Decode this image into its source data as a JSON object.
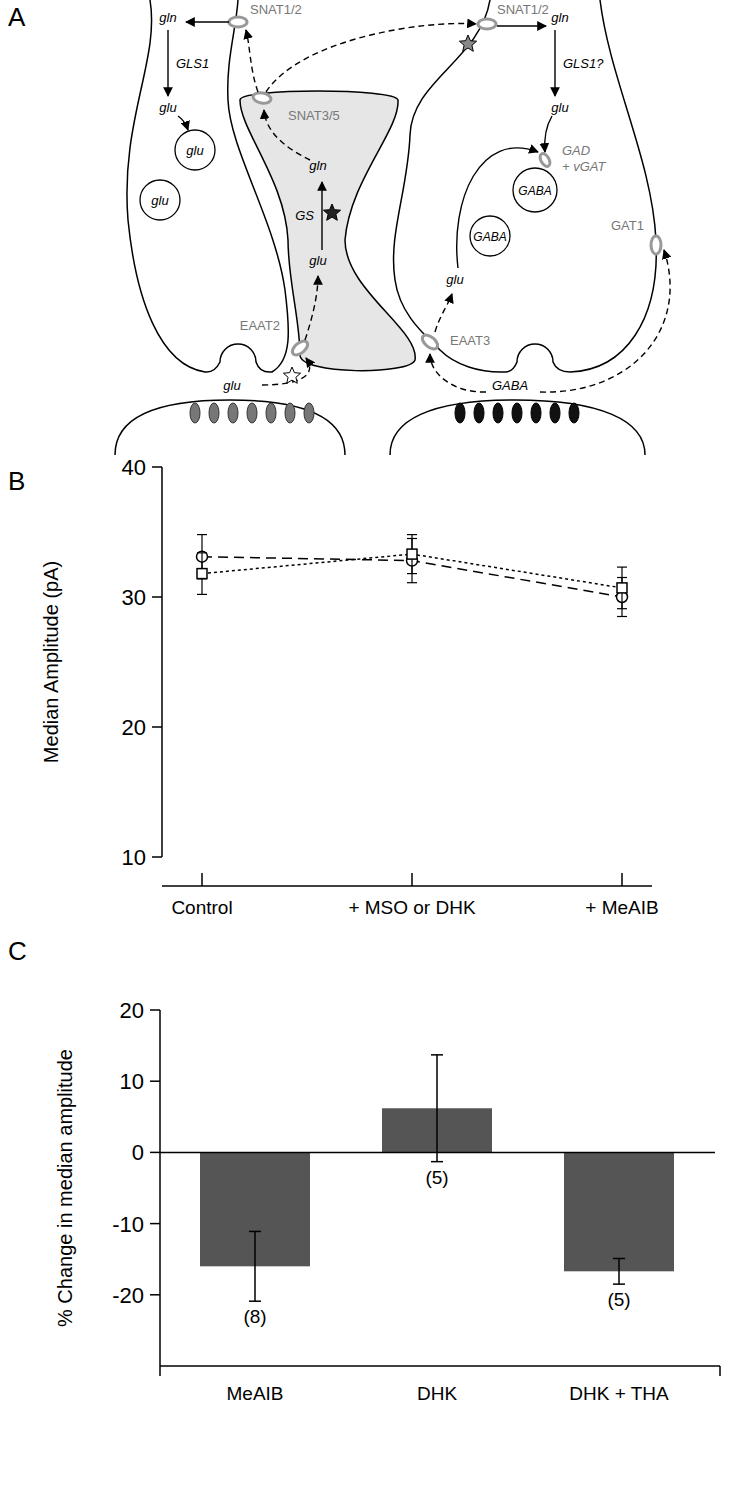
{
  "diagram": {
    "panel_label": "A",
    "labels": [
      "gln",
      "SNAT1/2",
      "GLS1",
      "glu",
      "glu",
      "glu",
      "glu",
      "SNAT3/5",
      "gln",
      "GS",
      "glu",
      "EAAT2",
      "SNAT1/2",
      "gln",
      "GLS1?",
      "glu",
      "GAD",
      "+ vGAT",
      "GABA",
      "GABA",
      "GAT1",
      "glu",
      "EAAT3",
      "GABA"
    ]
  },
  "chart_data": [
    {
      "type": "line",
      "panel_label": "B",
      "ylabel": "Median Amplitude (pA)",
      "categories": [
        "Control",
        "+ MSO or DHK",
        "+ MeAIB"
      ],
      "ylim": [
        10,
        40
      ],
      "yticks": [
        10,
        20,
        30,
        40
      ],
      "grid": false,
      "series": [
        {
          "marker": "circle",
          "line_style": "dashed",
          "color": "#000000",
          "values": [
            33.1,
            32.8,
            30.0
          ],
          "errors": [
            1.7,
            1.7,
            1.5
          ]
        },
        {
          "marker": "square",
          "line_style": "dotted",
          "color": "#000000",
          "values": [
            31.8,
            33.3,
            30.7
          ],
          "errors": [
            1.6,
            1.5,
            1.6
          ]
        }
      ]
    },
    {
      "type": "bar",
      "panel_label": "C",
      "ylabel": "% Change in median amplitude",
      "categories": [
        "MeAIB",
        "DHK",
        "DHK + THA"
      ],
      "values": [
        -16.0,
        6.2,
        -16.7
      ],
      "errors": [
        4.9,
        7.5,
        1.8
      ],
      "n_labels": [
        "(8)",
        "(5)",
        "(5)"
      ],
      "color": "#555555",
      "ylim": [
        -30,
        20
      ],
      "yticks": [
        -20,
        -10,
        0,
        10,
        20
      ],
      "grid": false
    }
  ]
}
